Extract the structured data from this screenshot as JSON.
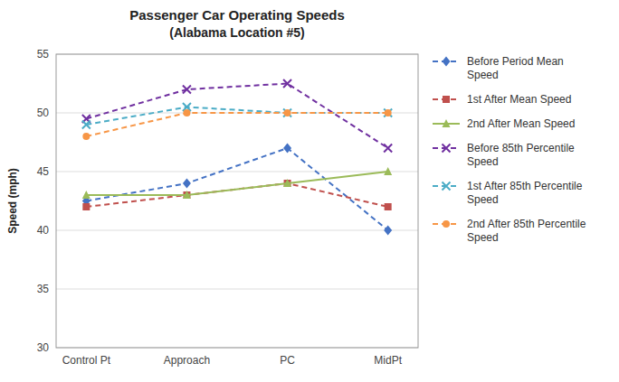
{
  "chart_data": {
    "type": "line",
    "title": "Passenger Car Operating Speeds",
    "subtitle": "(Alabama Location #5)",
    "y_label": "Speed (mph)",
    "categories": [
      "Control Pt",
      "Approach",
      "PC",
      "MidPt"
    ],
    "ylim": [
      30,
      55
    ],
    "yticks": [
      30,
      35,
      40,
      45,
      50,
      55
    ],
    "grid": true,
    "legend": "right",
    "series": [
      {
        "name": "Before Period Mean\nSpeed",
        "color": "#4472C4",
        "marker": "diamond",
        "line_style": "dashed",
        "values": [
          42.5,
          44.0,
          47.0,
          40.0
        ]
      },
      {
        "name": "1st After Mean Speed",
        "color": "#C0504D",
        "marker": "square",
        "line_style": "dashed",
        "values": [
          42.0,
          43.0,
          44.0,
          42.0
        ]
      },
      {
        "name": "2nd After Mean Speed",
        "color": "#9BBB59",
        "marker": "triangle",
        "line_style": "solid",
        "values": [
          43.0,
          43.0,
          44.0,
          45.0
        ]
      },
      {
        "name": "Before 85th Percentile\nSpeed",
        "color": "#7030A0",
        "marker": "x",
        "line_style": "dashed",
        "values": [
          49.5,
          52.0,
          52.5,
          47.0
        ]
      },
      {
        "name": "1st After 85th Percentile\nSpeed",
        "color": "#4BACC6",
        "marker": "x",
        "line_style": "dashed",
        "values": [
          49.0,
          50.5,
          50.0,
          50.0
        ]
      },
      {
        "name": "2nd After 85th Percentile\nSpeed",
        "color": "#F79646",
        "marker": "circle",
        "line_style": "dashed",
        "values": [
          48.0,
          50.0,
          50.0,
          50.0
        ]
      }
    ]
  }
}
